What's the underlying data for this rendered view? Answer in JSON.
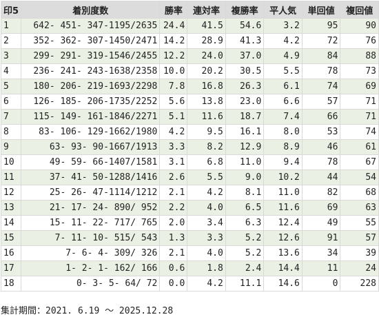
{
  "table": {
    "headers": [
      "印5",
      "着別度数",
      "勝率",
      "連対率",
      "複勝率",
      "平人気",
      "単回値",
      "複回値"
    ],
    "rows": [
      [
        "1",
        "642- 451- 347-1195/2635",
        "24.4",
        "41.5",
        "54.6",
        "3.2",
        "95",
        "90"
      ],
      [
        "2",
        "352- 362- 307-1450/2471",
        "14.2",
        "28.9",
        "41.3",
        "4.2",
        "72",
        "76"
      ],
      [
        "3",
        "299- 291- 319-1546/2455",
        "12.2",
        "24.0",
        "37.0",
        "4.9",
        "84",
        "88"
      ],
      [
        "4",
        "236- 241- 243-1638/2358",
        "10.0",
        "20.2",
        "30.5",
        "5.5",
        "78",
        "73"
      ],
      [
        "5",
        "180- 206- 219-1693/2298",
        "7.8",
        "16.8",
        "26.3",
        "6.1",
        "74",
        "69"
      ],
      [
        "6",
        "126- 185- 206-1735/2252",
        "5.6",
        "13.8",
        "23.0",
        "6.6",
        "57",
        "71"
      ],
      [
        "7",
        "115- 149- 161-1846/2271",
        "5.1",
        "11.6",
        "18.7",
        "7.4",
        "66",
        "71"
      ],
      [
        "8",
        "83- 106- 129-1662/1980",
        "4.2",
        "9.5",
        "16.1",
        "8.0",
        "53",
        "74"
      ],
      [
        "9",
        "63- 93- 90-1667/1913",
        "3.3",
        "8.2",
        "12.9",
        "8.9",
        "46",
        "61"
      ],
      [
        "10",
        "49- 59- 66-1407/1581",
        "3.1",
        "6.8",
        "11.0",
        "9.4",
        "78",
        "67"
      ],
      [
        "11",
        "37- 41- 50-1288/1416",
        "2.6",
        "5.5",
        "9.0",
        "10.2",
        "44",
        "54"
      ],
      [
        "12",
        "25- 26- 47-1114/1212",
        "2.1",
        "4.2",
        "8.1",
        "11.0",
        "82",
        "68"
      ],
      [
        "13",
        "21- 17- 24- 890/ 952",
        "2.2",
        "4.0",
        "6.5",
        "11.6",
        "69",
        "63"
      ],
      [
        "14",
        "15- 11- 22- 717/ 765",
        "2.0",
        "3.4",
        "6.3",
        "12.4",
        "49",
        "55"
      ],
      [
        "15",
        "7- 11- 10- 515/ 543",
        "1.3",
        "3.3",
        "5.2",
        "12.6",
        "91",
        "57"
      ],
      [
        "16",
        "7- 6- 4- 309/ 326",
        "2.1",
        "4.0",
        "5.2",
        "13.6",
        "34",
        "39"
      ],
      [
        "17",
        "1- 2- 1- 162/ 166",
        "0.6",
        "1.8",
        "2.4",
        "14.4",
        "11",
        "24"
      ],
      [
        "18",
        "0- 3- 5- 64/ 72",
        "0.0",
        "4.2",
        "11.1",
        "14.6",
        "0",
        "228"
      ]
    ]
  },
  "footer": {
    "period": "集計期間：2021. 6.19 ～ 2025.12.28"
  }
}
